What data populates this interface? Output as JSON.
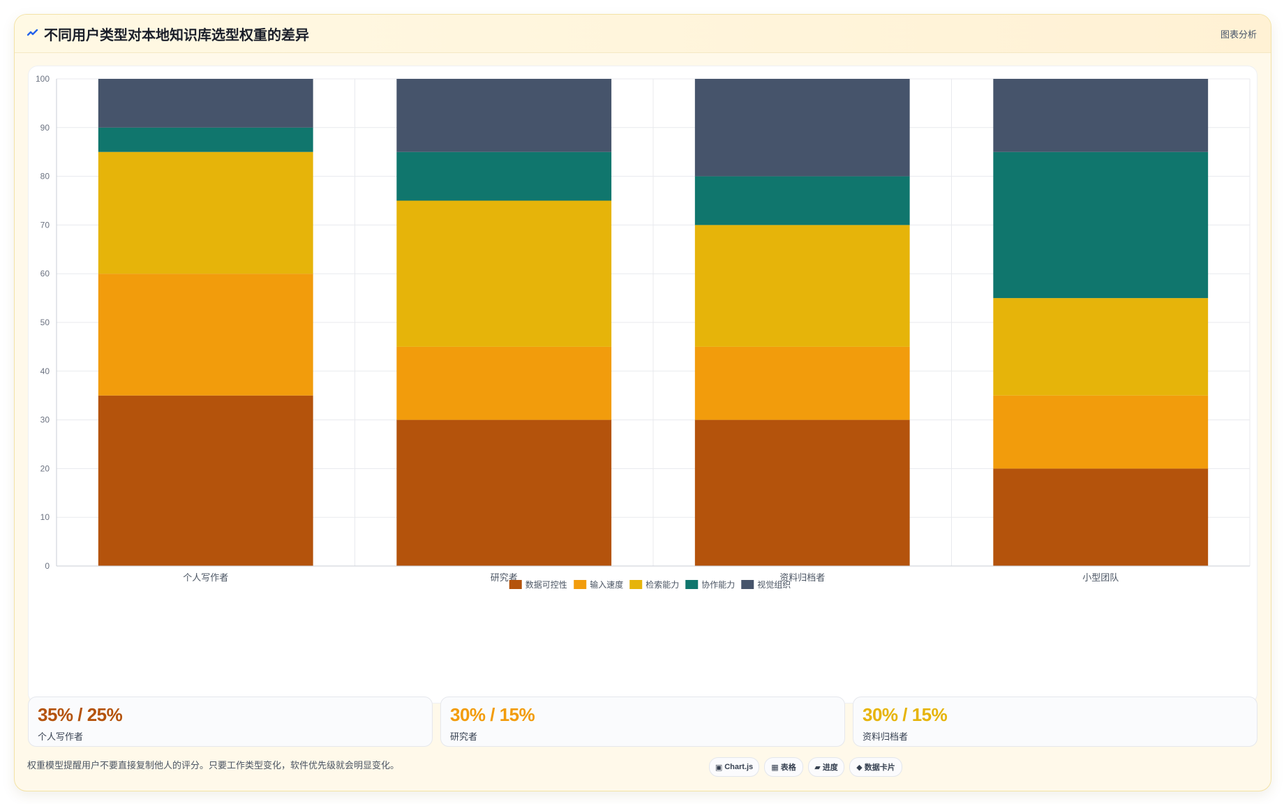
{
  "header": {
    "title": "不同用户类型对本地知识库选型权重的差异",
    "link_label": "图表分析",
    "icon": "trend-line-icon"
  },
  "chart_data": {
    "type": "bar",
    "stacked": true,
    "categories": [
      "个人写作者",
      "研究者",
      "资料归档者",
      "小型团队"
    ],
    "series": [
      {
        "name": "数据可控性",
        "color": "#b4530c",
        "values": [
          35,
          30,
          30,
          20
        ]
      },
      {
        "name": "输入速度",
        "color": "#f29c0c",
        "values": [
          25,
          15,
          15,
          15
        ]
      },
      {
        "name": "检索能力",
        "color": "#e6b40a",
        "values": [
          25,
          30,
          25,
          20
        ]
      },
      {
        "name": "协作能力",
        "color": "#10766d",
        "values": [
          5,
          10,
          10,
          30
        ]
      },
      {
        "name": "视觉组织",
        "color": "#46546b",
        "values": [
          10,
          15,
          20,
          15
        ]
      }
    ],
    "ylim": [
      0,
      100
    ],
    "yticks": [
      0,
      10,
      20,
      30,
      40,
      50,
      60,
      70,
      80,
      90,
      100
    ],
    "grid": true,
    "legend_position": "bottom"
  },
  "stats": [
    {
      "value": "35% / 25%",
      "label": "个人写作者",
      "color": "#b4530c"
    },
    {
      "value": "30% / 15%",
      "label": "研究者",
      "color": "#f29c0c"
    },
    {
      "value": "30% / 15%",
      "label": "资料归档者",
      "color": "#e6b40a"
    }
  ],
  "footer": {
    "note": "权重模型提醒用户不要直接复制他人的评分。只要工作类型变化，软件优先级就会明显变化。"
  },
  "chips": [
    {
      "icon": "▣",
      "label": "Chart.js"
    },
    {
      "icon": "▦",
      "label": "表格"
    },
    {
      "icon": "▰",
      "label": "进度"
    },
    {
      "icon": "◆",
      "label": "数据卡片"
    }
  ]
}
